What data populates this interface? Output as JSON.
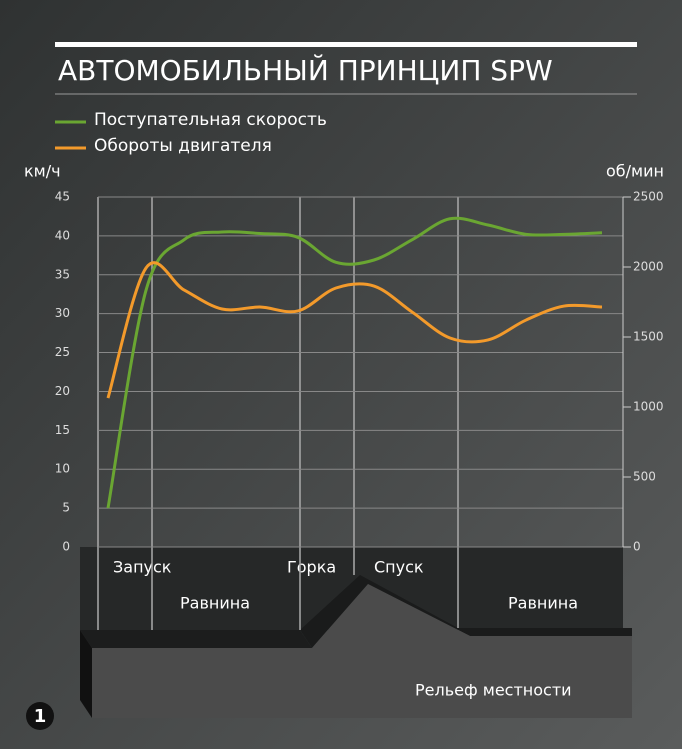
{
  "chart_data": {
    "type": "line",
    "title": "АВТОМОБИЛЬНЫЙ ПРИНЦИП SPW",
    "y_label": "км/ч",
    "y2_label": "об/мин",
    "categories": [
      null,
      null,
      null,
      null,
      null,
      null,
      null,
      null,
      null,
      null,
      null,
      null,
      null,
      null
    ],
    "series": [
      {
        "name": "Поступательная скорость",
        "color": "#6aa632",
        "values": [
          5,
          33,
          39.5,
          40.5,
          40.3,
          39.8,
          36.6,
          36.9,
          39.5,
          42.2,
          41.4,
          40.2,
          40.2,
          40.4
        ]
      },
      {
        "name": "Обороты двигателя",
        "color": "#f39a2b",
        "axis": "y2",
        "values": [
          1064,
          1993,
          1836,
          1700,
          1714,
          1686,
          1850,
          1864,
          1679,
          1493,
          1479,
          1621,
          1721,
          1714
        ]
      }
    ],
    "ylim": [
      0,
      45
    ],
    "yticks": [
      0,
      5,
      10,
      15,
      20,
      25,
      30,
      35,
      40,
      45
    ],
    "y2lim": [
      0,
      2500
    ],
    "y2ticks": [
      0,
      500,
      1000,
      1500,
      2000,
      2500
    ],
    "grid": true,
    "legend": "top-left",
    "annotations": [
      "Запуск",
      "Равнина",
      "Горка",
      "Спуск",
      "Равнина",
      "Рельеф местности",
      "1"
    ]
  }
}
